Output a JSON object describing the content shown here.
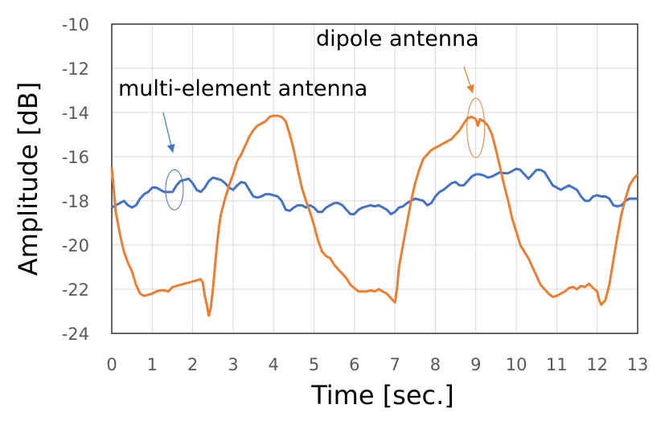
{
  "chart_data": {
    "type": "line",
    "xlabel": "Time [sec.]",
    "ylabel": "Amplitude [dB]",
    "xlim": [
      0,
      13
    ],
    "ylim": [
      -24,
      -10
    ],
    "xticks": [
      "0",
      "1",
      "2",
      "3",
      "4",
      "5",
      "6",
      "7",
      "8",
      "9",
      "10",
      "11",
      "12",
      "13"
    ],
    "yticks": [
      "-10",
      "-12",
      "-14",
      "-16",
      "-18",
      "-20",
      "-22",
      "-24"
    ],
    "grid": true,
    "annotations": [
      {
        "text": "dipole antenna",
        "target_series": "dipole antenna",
        "at_x": 9.0,
        "at_y": -14.7
      },
      {
        "text": "multi-element antenna",
        "target_series": "multi-element antenna",
        "at_x": 1.55,
        "at_y": -17.5
      }
    ],
    "series": [
      {
        "name": "multi-element antenna",
        "color": "#4472C4",
        "points": [
          [
            0,
            -18.3
          ],
          [
            0.1,
            -18.2
          ],
          [
            0.2,
            -18.1
          ],
          [
            0.3,
            -18.0
          ],
          [
            0.4,
            -18.2
          ],
          [
            0.5,
            -18.3
          ],
          [
            0.6,
            -18.2
          ],
          [
            0.7,
            -17.9
          ],
          [
            0.8,
            -17.7
          ],
          [
            0.9,
            -17.6
          ],
          [
            1.0,
            -17.4
          ],
          [
            1.1,
            -17.4
          ],
          [
            1.2,
            -17.5
          ],
          [
            1.3,
            -17.6
          ],
          [
            1.4,
            -17.6
          ],
          [
            1.5,
            -17.6
          ],
          [
            1.6,
            -17.3
          ],
          [
            1.7,
            -17.1
          ],
          [
            1.8,
            -17.05
          ],
          [
            1.9,
            -17.0
          ],
          [
            2.0,
            -17.2
          ],
          [
            2.1,
            -17.5
          ],
          [
            2.2,
            -17.6
          ],
          [
            2.3,
            -17.4
          ],
          [
            2.4,
            -17.1
          ],
          [
            2.5,
            -16.95
          ],
          [
            2.6,
            -17.0
          ],
          [
            2.7,
            -17.05
          ],
          [
            2.8,
            -17.2
          ],
          [
            2.9,
            -17.4
          ],
          [
            3.0,
            -17.5
          ],
          [
            3.1,
            -17.3
          ],
          [
            3.2,
            -17.15
          ],
          [
            3.3,
            -17.2
          ],
          [
            3.4,
            -17.5
          ],
          [
            3.5,
            -17.8
          ],
          [
            3.6,
            -17.85
          ],
          [
            3.7,
            -17.8
          ],
          [
            3.8,
            -17.7
          ],
          [
            3.9,
            -17.7
          ],
          [
            4.0,
            -17.75
          ],
          [
            4.1,
            -17.8
          ],
          [
            4.2,
            -18.0
          ],
          [
            4.3,
            -18.4
          ],
          [
            4.4,
            -18.45
          ],
          [
            4.5,
            -18.3
          ],
          [
            4.6,
            -18.2
          ],
          [
            4.7,
            -18.2
          ],
          [
            4.8,
            -18.3
          ],
          [
            4.9,
            -18.2
          ],
          [
            5.0,
            -18.3
          ],
          [
            5.1,
            -18.5
          ],
          [
            5.2,
            -18.5
          ],
          [
            5.3,
            -18.3
          ],
          [
            5.4,
            -18.2
          ],
          [
            5.5,
            -18.1
          ],
          [
            5.6,
            -18.1
          ],
          [
            5.7,
            -18.2
          ],
          [
            5.8,
            -18.4
          ],
          [
            5.9,
            -18.6
          ],
          [
            6.0,
            -18.6
          ],
          [
            6.1,
            -18.4
          ],
          [
            6.2,
            -18.3
          ],
          [
            6.3,
            -18.25
          ],
          [
            6.4,
            -18.2
          ],
          [
            6.5,
            -18.25
          ],
          [
            6.6,
            -18.2
          ],
          [
            6.7,
            -18.3
          ],
          [
            6.8,
            -18.4
          ],
          [
            6.9,
            -18.6
          ],
          [
            7.0,
            -18.5
          ],
          [
            7.1,
            -18.3
          ],
          [
            7.2,
            -18.25
          ],
          [
            7.3,
            -18.1
          ],
          [
            7.4,
            -18.0
          ],
          [
            7.5,
            -17.9
          ],
          [
            7.6,
            -17.95
          ],
          [
            7.7,
            -18.0
          ],
          [
            7.8,
            -18.2
          ],
          [
            7.9,
            -18.1
          ],
          [
            8.0,
            -17.8
          ],
          [
            8.1,
            -17.6
          ],
          [
            8.2,
            -17.5
          ],
          [
            8.3,
            -17.35
          ],
          [
            8.4,
            -17.2
          ],
          [
            8.5,
            -17.15
          ],
          [
            8.6,
            -17.3
          ],
          [
            8.7,
            -17.3
          ],
          [
            8.8,
            -17.1
          ],
          [
            8.9,
            -16.9
          ],
          [
            9.0,
            -16.8
          ],
          [
            9.1,
            -16.8
          ],
          [
            9.2,
            -16.85
          ],
          [
            9.3,
            -16.95
          ],
          [
            9.4,
            -16.9
          ],
          [
            9.5,
            -16.8
          ],
          [
            9.6,
            -16.7
          ],
          [
            9.7,
            -16.75
          ],
          [
            9.8,
            -16.75
          ],
          [
            9.9,
            -16.65
          ],
          [
            10.0,
            -16.55
          ],
          [
            10.1,
            -16.6
          ],
          [
            10.2,
            -16.8
          ],
          [
            10.3,
            -17.0
          ],
          [
            10.4,
            -16.8
          ],
          [
            10.5,
            -16.6
          ],
          [
            10.6,
            -16.6
          ],
          [
            10.7,
            -16.7
          ],
          [
            10.8,
            -17.0
          ],
          [
            10.9,
            -17.3
          ],
          [
            11.0,
            -17.4
          ],
          [
            11.1,
            -17.5
          ],
          [
            11.2,
            -17.4
          ],
          [
            11.3,
            -17.3
          ],
          [
            11.4,
            -17.4
          ],
          [
            11.5,
            -17.5
          ],
          [
            11.6,
            -17.8
          ],
          [
            11.7,
            -18.0
          ],
          [
            11.8,
            -18.0
          ],
          [
            11.9,
            -17.8
          ],
          [
            12.0,
            -17.75
          ],
          [
            12.1,
            -17.8
          ],
          [
            12.2,
            -17.8
          ],
          [
            12.3,
            -17.9
          ],
          [
            12.4,
            -18.2
          ],
          [
            12.5,
            -18.25
          ],
          [
            12.6,
            -18.2
          ],
          [
            12.7,
            -18.0
          ],
          [
            12.8,
            -17.9
          ],
          [
            12.9,
            -17.9
          ],
          [
            13.0,
            -17.9
          ]
        ]
      },
      {
        "name": "dipole antenna",
        "color": "#ED7D31",
        "points": [
          [
            0,
            -16.5
          ],
          [
            0.05,
            -17.5
          ],
          [
            0.1,
            -18.5
          ],
          [
            0.15,
            -19.0
          ],
          [
            0.2,
            -19.5
          ],
          [
            0.3,
            -20.3
          ],
          [
            0.4,
            -20.8
          ],
          [
            0.5,
            -21.2
          ],
          [
            0.6,
            -21.8
          ],
          [
            0.7,
            -22.2
          ],
          [
            0.8,
            -22.3
          ],
          [
            0.9,
            -22.25
          ],
          [
            1.0,
            -22.2
          ],
          [
            1.1,
            -22.1
          ],
          [
            1.2,
            -22.05
          ],
          [
            1.3,
            -22.05
          ],
          [
            1.4,
            -22.1
          ],
          [
            1.5,
            -21.9
          ],
          [
            1.6,
            -21.85
          ],
          [
            1.7,
            -21.8
          ],
          [
            1.8,
            -21.75
          ],
          [
            1.9,
            -21.7
          ],
          [
            2.0,
            -21.65
          ],
          [
            2.1,
            -21.6
          ],
          [
            2.2,
            -21.55
          ],
          [
            2.25,
            -21.7
          ],
          [
            2.3,
            -22.3
          ],
          [
            2.35,
            -22.7
          ],
          [
            2.4,
            -23.2
          ],
          [
            2.45,
            -22.8
          ],
          [
            2.5,
            -22.0
          ],
          [
            2.55,
            -21.0
          ],
          [
            2.6,
            -20.0
          ],
          [
            2.65,
            -19.2
          ],
          [
            2.7,
            -18.6
          ],
          [
            2.8,
            -17.9
          ],
          [
            2.9,
            -17.3
          ],
          [
            3.0,
            -16.8
          ],
          [
            3.1,
            -16.2
          ],
          [
            3.2,
            -15.9
          ],
          [
            3.3,
            -15.5
          ],
          [
            3.4,
            -15.1
          ],
          [
            3.5,
            -14.8
          ],
          [
            3.6,
            -14.6
          ],
          [
            3.7,
            -14.5
          ],
          [
            3.8,
            -14.4
          ],
          [
            3.9,
            -14.2
          ],
          [
            4.0,
            -14.15
          ],
          [
            4.1,
            -14.15
          ],
          [
            4.2,
            -14.2
          ],
          [
            4.3,
            -14.4
          ],
          [
            4.4,
            -15.0
          ],
          [
            4.5,
            -15.7
          ],
          [
            4.6,
            -16.6
          ],
          [
            4.7,
            -17.4
          ],
          [
            4.8,
            -18.0
          ],
          [
            4.9,
            -18.5
          ],
          [
            5.0,
            -19.1
          ],
          [
            5.1,
            -19.8
          ],
          [
            5.2,
            -20.3
          ],
          [
            5.3,
            -20.5
          ],
          [
            5.4,
            -20.6
          ],
          [
            5.5,
            -20.9
          ],
          [
            5.6,
            -21.1
          ],
          [
            5.7,
            -21.3
          ],
          [
            5.8,
            -21.5
          ],
          [
            5.9,
            -21.8
          ],
          [
            6.0,
            -21.95
          ],
          [
            6.1,
            -22.1
          ],
          [
            6.2,
            -22.1
          ],
          [
            6.3,
            -22.1
          ],
          [
            6.4,
            -22.05
          ],
          [
            6.5,
            -22.1
          ],
          [
            6.6,
            -22.0
          ],
          [
            6.7,
            -22.1
          ],
          [
            6.8,
            -22.2
          ],
          [
            6.9,
            -22.4
          ],
          [
            7.0,
            -22.6
          ],
          [
            7.05,
            -22.0
          ],
          [
            7.1,
            -21.0
          ],
          [
            7.2,
            -20.0
          ],
          [
            7.3,
            -19.0
          ],
          [
            7.4,
            -18.0
          ],
          [
            7.5,
            -17.2
          ],
          [
            7.6,
            -16.6
          ],
          [
            7.7,
            -16.1
          ],
          [
            7.8,
            -15.9
          ],
          [
            7.9,
            -15.7
          ],
          [
            8.0,
            -15.6
          ],
          [
            8.1,
            -15.5
          ],
          [
            8.2,
            -15.4
          ],
          [
            8.3,
            -15.3
          ],
          [
            8.4,
            -15.2
          ],
          [
            8.5,
            -15.0
          ],
          [
            8.6,
            -14.8
          ],
          [
            8.7,
            -14.5
          ],
          [
            8.8,
            -14.25
          ],
          [
            8.9,
            -14.2
          ],
          [
            9.0,
            -14.3
          ],
          [
            9.05,
            -14.6
          ],
          [
            9.1,
            -14.3
          ],
          [
            9.2,
            -14.4
          ],
          [
            9.3,
            -14.6
          ],
          [
            9.4,
            -15.0
          ],
          [
            9.5,
            -15.7
          ],
          [
            9.6,
            -16.5
          ],
          [
            9.7,
            -17.3
          ],
          [
            9.8,
            -18.0
          ],
          [
            9.9,
            -18.8
          ],
          [
            10.0,
            -19.4
          ],
          [
            10.1,
            -20.0
          ],
          [
            10.2,
            -20.3
          ],
          [
            10.3,
            -20.6
          ],
          [
            10.4,
            -21.0
          ],
          [
            10.5,
            -21.4
          ],
          [
            10.6,
            -21.8
          ],
          [
            10.7,
            -22.0
          ],
          [
            10.8,
            -22.2
          ],
          [
            10.9,
            -22.35
          ],
          [
            11.0,
            -22.3
          ],
          [
            11.1,
            -22.2
          ],
          [
            11.2,
            -22.1
          ],
          [
            11.3,
            -21.95
          ],
          [
            11.4,
            -21.9
          ],
          [
            11.5,
            -22.0
          ],
          [
            11.6,
            -21.85
          ],
          [
            11.7,
            -21.9
          ],
          [
            11.8,
            -21.75
          ],
          [
            11.9,
            -21.95
          ],
          [
            12.0,
            -22.1
          ],
          [
            12.05,
            -22.5
          ],
          [
            12.1,
            -22.7
          ],
          [
            12.2,
            -22.5
          ],
          [
            12.3,
            -21.8
          ],
          [
            12.4,
            -20.7
          ],
          [
            12.5,
            -19.6
          ],
          [
            12.6,
            -18.6
          ],
          [
            12.7,
            -17.9
          ],
          [
            12.8,
            -17.3
          ],
          [
            12.9,
            -17.0
          ],
          [
            13.0,
            -16.8
          ]
        ]
      }
    ]
  }
}
